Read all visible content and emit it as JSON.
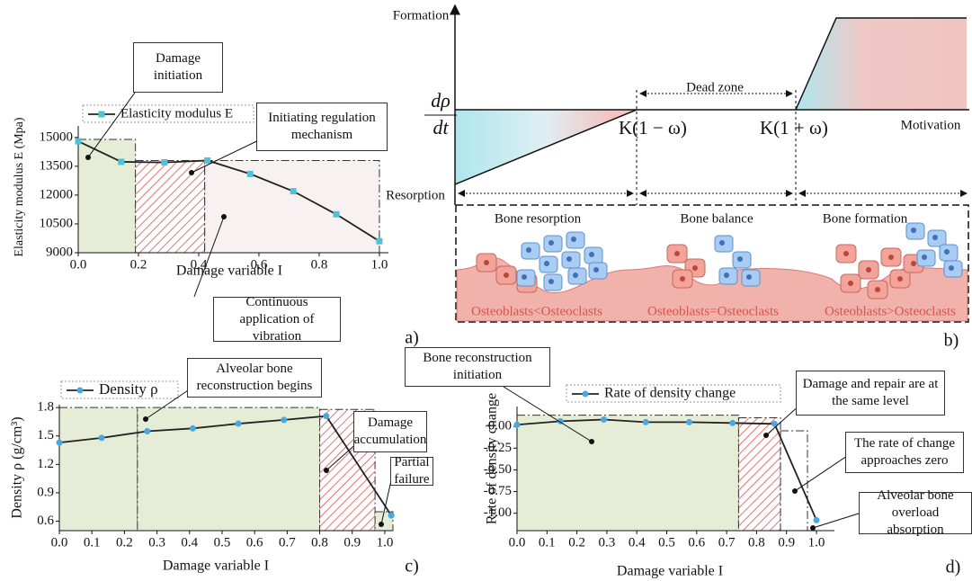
{
  "chart_data": [
    {
      "type": "line",
      "panel": "a)",
      "x_label": "Damage variable I",
      "y_label": "Elasticity modulus E (Mpa)",
      "x": [
        0,
        0.143,
        0.286,
        0.429,
        0.571,
        0.714,
        0.857,
        1
      ],
      "series": [
        {
          "name": "Elasticity modulus E",
          "color": "#4fc1d9",
          "line_color": "#222",
          "marker": "square",
          "values": [
            14800,
            13730,
            13700,
            13800,
            13100,
            12200,
            11000,
            9600
          ]
        }
      ],
      "xlim": [
        0,
        1.03
      ],
      "ylim": [
        9000,
        15600
      ],
      "xticks": [
        {
          "value": 0,
          "label": "0.0"
        },
        0.2,
        0.4,
        0.6,
        0.8,
        {
          "value": 1,
          "label": "1.0"
        }
      ],
      "yticks": [
        9000,
        10500,
        12000,
        13500,
        15000
      ],
      "annotations": [
        "Damage initiation",
        "Initiating regulation mechanism",
        "Continuous application of vibration"
      ],
      "regions": [
        {
          "x": [
            0,
            0.19
          ],
          "top": 14900,
          "fill": "#e5edd7",
          "hatch": false
        },
        {
          "x": [
            0.19,
            0.42
          ],
          "top": 13800,
          "fill": "#ffffff",
          "hatch": true
        },
        {
          "x": [
            0.42,
            1
          ],
          "top": 13800,
          "fill": "#f8f1f1",
          "hatch": false
        }
      ]
    },
    {
      "type": "line",
      "panel": "c)",
      "x_label": "Damage variable I",
      "y_label": "Density ρ (g/cm³)",
      "x": [
        0,
        0.13,
        0.27,
        0.41,
        0.55,
        0.69,
        0.82,
        1.02
      ],
      "series": [
        {
          "name": "Density ρ",
          "color": "#4aa8e0",
          "line_color": "#222",
          "marker": "circle",
          "values": [
            1.43,
            1.48,
            1.55,
            1.58,
            1.63,
            1.67,
            1.71,
            0.66
          ]
        }
      ],
      "xlim": [
        0,
        1.025
      ],
      "ylim": [
        0.5,
        1.83
      ],
      "xticks": [
        {
          "value": 0,
          "label": "0.0"
        },
        0.1,
        0.2,
        0.3,
        0.4,
        0.5,
        0.6,
        0.7,
        0.8,
        0.9,
        {
          "value": 1,
          "label": "1.0"
        }
      ],
      "yticks": [
        0.6,
        0.9,
        1.2,
        1.5,
        1.8
      ],
      "annotations": [
        "Alveolar bone reconstruction begins",
        "Damage accumulation",
        "Partial failure"
      ],
      "regions": [
        {
          "x": [
            0,
            0.24
          ],
          "top": 1.8,
          "fill": "#e5edd7",
          "hatch": false
        },
        {
          "x": [
            0.24,
            0.8
          ],
          "top": 1.8,
          "fill": "#e5edd7",
          "hatch": false
        },
        {
          "x": [
            0.8,
            0.97
          ],
          "top": 1.78,
          "fill": "#ffffff",
          "hatch": true
        },
        {
          "x": [
            0.97,
            1.025
          ],
          "top": 0.7,
          "fill": "#e5edd7",
          "hatch": false
        }
      ]
    },
    {
      "type": "line",
      "panel": "d)",
      "x_label": "Damage variable I",
      "y_label": "Rate of density change",
      "x": [
        0,
        0.145,
        0.29,
        0.43,
        0.575,
        0.72,
        0.86,
        1
      ],
      "series": [
        {
          "name": "Rate of density change",
          "color": "#4aa8e0",
          "line_color": "#222",
          "marker": "circle",
          "values": [
            0.02,
            0.06,
            0.08,
            0.05,
            0.05,
            0.04,
            0.03,
            -1.08
          ]
        }
      ],
      "xlim": [
        0,
        1.06
      ],
      "ylim": [
        -1.2,
        0.23
      ],
      "xticks": [
        {
          "value": 0,
          "label": "0.0"
        },
        0.1,
        0.2,
        0.3,
        0.4,
        0.5,
        0.6,
        0.7,
        0.8,
        0.9,
        {
          "value": 1,
          "label": "1.0"
        }
      ],
      "yticks": [
        {
          "value": 0,
          "label": "0.00"
        },
        -0.25,
        {
          "value": -0.5,
          "label": "-0.50"
        },
        -0.75,
        {
          "value": -1,
          "label": "-1.00"
        }
      ],
      "annotations": [
        "Bone reconstruction initiation",
        "Damage and repair are at the same level",
        "The rate of change approaches zero",
        "Alveolar bone overload absorption"
      ],
      "regions": [
        {
          "x": [
            0,
            0.74
          ],
          "top": 0.13,
          "fill": "#e5edd7",
          "hatch": false
        },
        {
          "x": [
            0.74,
            0.88
          ],
          "top": 0.1,
          "fill": "#ffffff",
          "hatch": true
        },
        {
          "x": [
            0.88,
            0.97
          ],
          "top": -0.05,
          "fill": "#ffffff",
          "hatch": false
        }
      ]
    }
  ],
  "diagram": {
    "panel": "b)",
    "top_label": "Formation",
    "bottom_label": "Resorption",
    "y_numerator": "dρ",
    "y_denominator": "dt",
    "x_label": "Motivation",
    "dead_zone": "Dead zone",
    "threshold_low": "K(1 − ω)",
    "threshold_high": "K(1 + ω)",
    "stages": [
      "Bone resorption",
      "Bone balance",
      "Bone formation"
    ],
    "states": [
      "Osteoblasts<Osteoclasts",
      "Osteoblasts=Osteoclasts",
      "Osteoblasts>Osteoclasts"
    ]
  }
}
